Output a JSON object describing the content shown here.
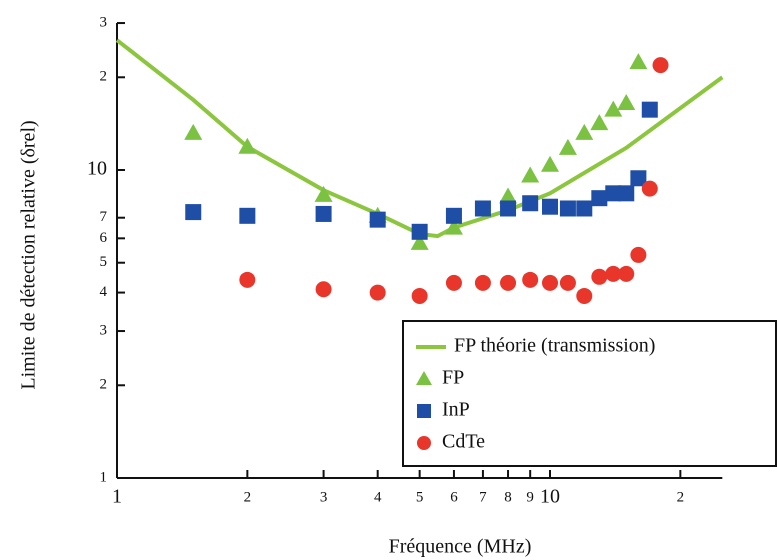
{
  "chart_data": {
    "type": "scatter",
    "xlabel": "Fréquence (MHz)",
    "ylabel": "Limite de détection relative (δrel)",
    "log_x": true,
    "log_y": true,
    "xlim": [
      1,
      25
    ],
    "ylim": [
      1,
      30
    ],
    "xticks": [
      1,
      2,
      3,
      4,
      5,
      6,
      7,
      8,
      9,
      10,
      {
        "value": 20,
        "label": "2"
      }
    ],
    "yticks": [
      1,
      2,
      3,
      4,
      5,
      6,
      7,
      10,
      {
        "value": 20,
        "label": "2"
      },
      {
        "value": 30,
        "label": "3"
      }
    ],
    "legend": "lower right",
    "series": [
      {
        "name": "FP théorie (transmission)",
        "marker": "line",
        "color": "#8cc63e",
        "x": [
          1,
          1.5,
          2,
          3,
          4,
          5,
          5.5,
          6,
          8,
          10,
          15,
          25
        ],
        "values": [
          26.4,
          16.9,
          11.9,
          8.6,
          7.2,
          6.2,
          6.1,
          6.5,
          7.4,
          8.4,
          11.8,
          20
        ]
      },
      {
        "name": "FP",
        "marker": "triangle",
        "color": "#7cc242",
        "x": [
          1.5,
          2,
          3,
          4,
          5,
          6,
          8,
          9,
          10,
          11,
          12,
          13,
          14,
          15,
          16
        ],
        "values": [
          13.2,
          11.9,
          8.3,
          7.1,
          5.8,
          6.5,
          8.2,
          9.6,
          10.4,
          11.8,
          13.2,
          14.2,
          15.7,
          16.5,
          22.4
        ]
      },
      {
        "name": "InP",
        "marker": "square",
        "color": "#1f4ea6",
        "x": [
          1.5,
          2,
          3,
          4,
          5,
          6,
          7,
          8,
          9,
          10,
          11,
          12,
          13,
          14,
          15,
          16,
          17
        ],
        "values": [
          7.3,
          7.1,
          7.2,
          6.9,
          6.3,
          7.1,
          7.5,
          7.5,
          7.8,
          7.6,
          7.5,
          7.5,
          8.1,
          8.4,
          8.4,
          9.4,
          15.7
        ]
      },
      {
        "name": "CdTe",
        "marker": "circle",
        "color": "#e8362b",
        "x": [
          2,
          3,
          4,
          5,
          6,
          7,
          8,
          9,
          10,
          11,
          12,
          13,
          14,
          15,
          16,
          17,
          18
        ],
        "values": [
          4.4,
          4.1,
          4.0,
          3.9,
          4.3,
          4.3,
          4.3,
          4.4,
          4.3,
          4.3,
          3.9,
          4.5,
          4.6,
          4.6,
          5.3,
          8.7,
          21.9
        ]
      }
    ]
  }
}
